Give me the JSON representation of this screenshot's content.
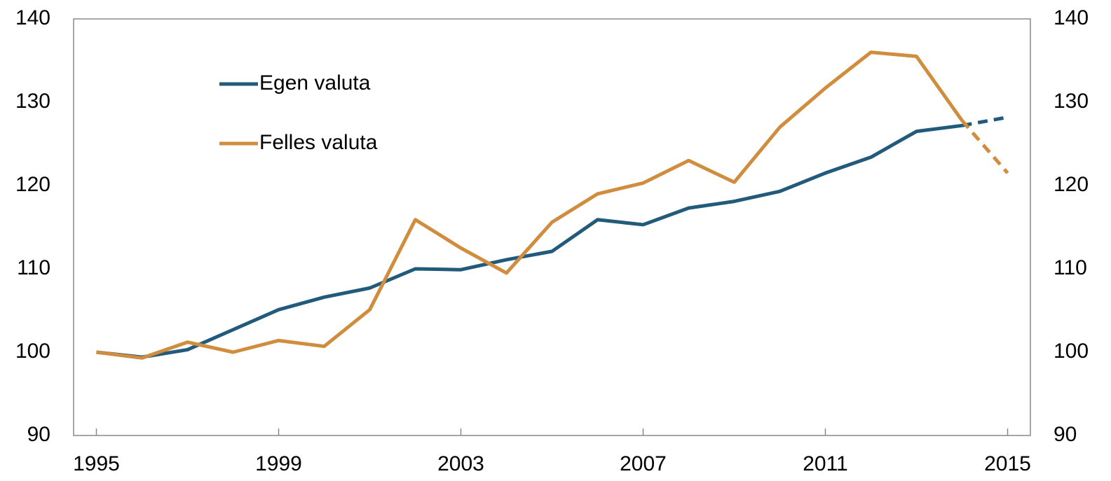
{
  "chart_data": {
    "type": "line",
    "x": [
      1995,
      1996,
      1997,
      1998,
      1999,
      2000,
      2001,
      2002,
      2003,
      2004,
      2005,
      2006,
      2007,
      2008,
      2009,
      2010,
      2011,
      2012,
      2013,
      2014,
      2015
    ],
    "series": [
      {
        "name": "Egen valuta",
        "color": "#215a7b",
        "values": [
          100,
          99.4,
          100.3,
          102.7,
          105.1,
          106.6,
          107.7,
          110,
          109.9,
          111.1,
          112.1,
          115.9,
          115.3,
          117.3,
          118.1,
          119.3,
          121.5,
          123.4,
          126.5,
          127.2,
          128.2
        ]
      },
      {
        "name": "Felles valuta",
        "color": "#d08d3e",
        "values": [
          100,
          99.3,
          101.2,
          100,
          101.4,
          100.7,
          105.1,
          115.9,
          112.5,
          109.5,
          115.6,
          119,
          120.3,
          123,
          120.4,
          127,
          131.7,
          136,
          135.5,
          127.8,
          121.5
        ]
      }
    ],
    "dash_from": 2014,
    "xlim": [
      1994.5,
      2015.5
    ],
    "xticks": [
      1995,
      1999,
      2003,
      2007,
      2011,
      2015
    ],
    "ylim": [
      90,
      140
    ],
    "yticks": [
      90,
      100,
      110,
      120,
      130,
      140
    ],
    "y2lim": [
      90,
      140
    ],
    "y2ticks": [
      90,
      100,
      110,
      120,
      130,
      140
    ],
    "grid": false,
    "legend": "upper left"
  }
}
